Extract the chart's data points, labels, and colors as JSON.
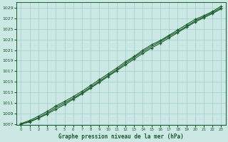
{
  "title": "Graphe pression niveau de la mer (hPa)",
  "background_color": "#cce8e4",
  "grid_color": "#9ecfca",
  "line_color": "#1a5c2a",
  "marker_color": "#1a5c2a",
  "x_values": [
    0,
    1,
    2,
    3,
    4,
    5,
    6,
    7,
    8,
    9,
    10,
    11,
    12,
    13,
    14,
    15,
    16,
    17,
    18,
    19,
    20,
    21,
    22,
    23
  ],
  "line1_y": [
    1007.1,
    1007.7,
    1008.5,
    1009.4,
    1010.4,
    1011.3,
    1012.2,
    1013.2,
    1014.3,
    1015.4,
    1016.5,
    1017.6,
    1018.8,
    1019.8,
    1021.0,
    1022.0,
    1022.8,
    1023.8,
    1024.8,
    1025.8,
    1026.8,
    1027.5,
    1028.3,
    1029.3
  ],
  "line2_y": [
    1007.0,
    1007.4,
    1008.1,
    1008.9,
    1009.8,
    1010.7,
    1011.7,
    1012.7,
    1013.8,
    1014.9,
    1016.0,
    1017.1,
    1018.2,
    1019.3,
    1020.4,
    1021.4,
    1022.3,
    1023.3,
    1024.3,
    1025.3,
    1026.3,
    1027.1,
    1027.9,
    1028.8
  ],
  "line3_y": [
    1007.0,
    1007.5,
    1008.2,
    1009.1,
    1010.1,
    1011.0,
    1011.9,
    1012.9,
    1014.0,
    1015.1,
    1016.2,
    1017.3,
    1018.5,
    1019.6,
    1020.7,
    1021.7,
    1022.6,
    1023.6,
    1024.5,
    1025.5,
    1026.5,
    1027.3,
    1028.1,
    1029.0
  ],
  "ylim_min": 1007,
  "ylim_max": 1030,
  "ytick_start": 1007,
  "ytick_step": 2,
  "xlim_min": 0,
  "xlim_max": 23
}
